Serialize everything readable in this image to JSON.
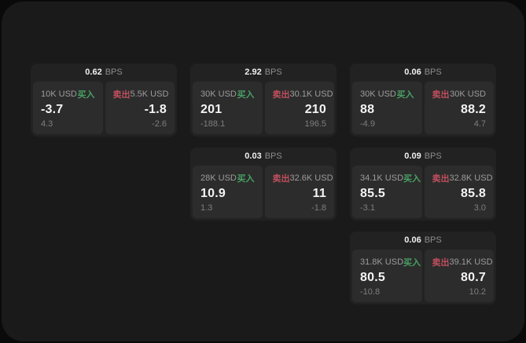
{
  "labels": {
    "bps_unit": "BPS",
    "buy": "买入",
    "sell": "卖出"
  },
  "colors": {
    "background": "#0a0a0a",
    "panel": "#1a1a1a",
    "card": "#222222",
    "tile": "#2c2c2c",
    "buy_green": "#47a164",
    "sell_red": "#c04f5e",
    "primary_text": "#f4f4f4",
    "secondary_text": "#9c9c9c"
  },
  "cards": [
    {
      "bps": "0.62",
      "buy": {
        "size": "10K USD",
        "price": "-3.7",
        "sub": "4.3"
      },
      "sell": {
        "size": "5.5K USD",
        "price": "-1.8",
        "sub": "-2.6"
      }
    },
    {
      "bps": "2.92",
      "buy": {
        "size": "30K USD",
        "price": "201",
        "sub": "-188.1"
      },
      "sell": {
        "size": "30.1K USD",
        "price": "210",
        "sub": "196.5"
      }
    },
    {
      "bps": "0.06",
      "buy": {
        "size": "30K USD",
        "price": "88",
        "sub": "-4.9"
      },
      "sell": {
        "size": "30K USD",
        "price": "88.2",
        "sub": "4.7"
      }
    },
    {
      "bps": "0.03",
      "buy": {
        "size": "28K USD",
        "price": "10.9",
        "sub": "1.3"
      },
      "sell": {
        "size": "32.6K USD",
        "price": "11",
        "sub": "-1.8"
      }
    },
    {
      "bps": "0.09",
      "buy": {
        "size": "34.1K USD",
        "price": "85.5",
        "sub": "-3.1"
      },
      "sell": {
        "size": "32.8K USD",
        "price": "85.8",
        "sub": "3.0"
      }
    },
    {
      "bps": "0.06",
      "buy": {
        "size": "31.8K USD",
        "price": "80.5",
        "sub": "-10.8"
      },
      "sell": {
        "size": "39.1K USD",
        "price": "80.7",
        "sub": "10.2"
      }
    }
  ]
}
